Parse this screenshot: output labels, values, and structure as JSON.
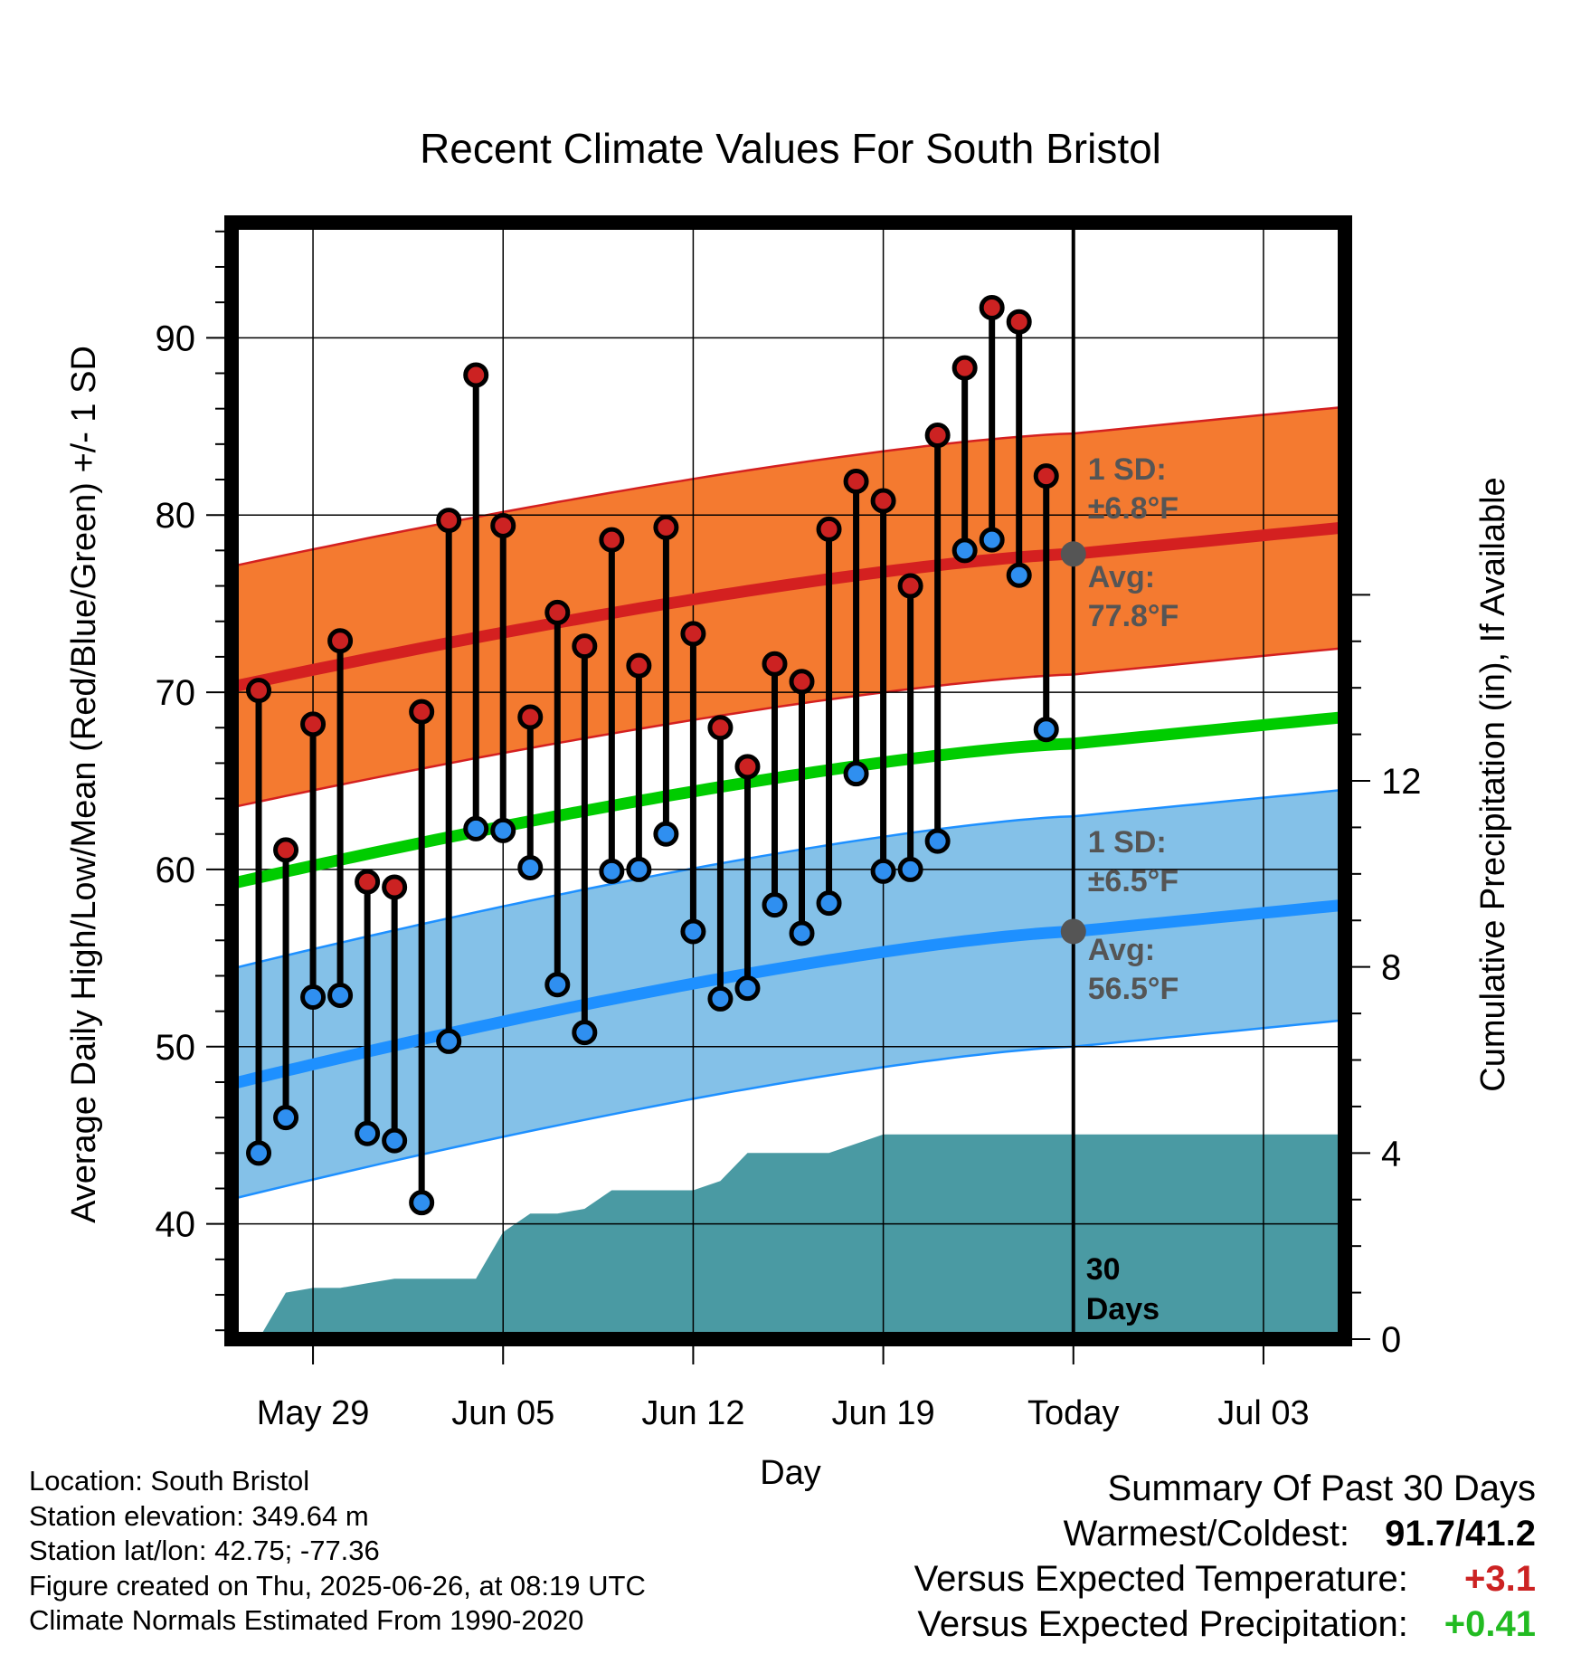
{
  "chart_data": {
    "type": "line",
    "title": "Recent Climate Values For South Bristol",
    "xlabel": "Day",
    "ylabel": "Average Daily High/Low/Mean (Red/Blue/Green) +/- 1 SD",
    "y2label": "Cumulative Precipitation (in), If Available",
    "x_ticks": [
      "May 29",
      "Jun 05",
      "Jun 12",
      "Jun 19",
      "Today",
      "Jul 03"
    ],
    "y_ticks": [
      40,
      50,
      60,
      70,
      80,
      90
    ],
    "y2_ticks": [
      0,
      4,
      8,
      12
    ],
    "ylim": [
      33.5,
      96.5
    ],
    "y2lim": [
      0,
      24
    ],
    "xlim_days_from_today": [
      -31,
      10
    ],
    "grid": true,
    "series": [
      {
        "name": "High",
        "color": "#cc2222",
        "values": [
          70.1,
          61.1,
          68.2,
          72.9,
          59.3,
          59.0,
          68.9,
          79.7,
          87.9,
          79.4,
          68.6,
          74.5,
          72.6,
          78.6,
          71.5,
          79.3,
          73.3,
          68.0,
          65.8,
          71.6,
          70.6,
          79.2,
          81.9,
          80.8,
          76.0,
          84.5,
          88.3,
          91.7,
          90.9,
          82.2
        ]
      },
      {
        "name": "Low",
        "color": "#2f8ff0",
        "values": [
          44.0,
          46.0,
          52.8,
          52.9,
          45.1,
          44.7,
          41.2,
          50.3,
          62.3,
          62.2,
          60.1,
          53.5,
          50.8,
          59.9,
          60.0,
          62.0,
          56.5,
          52.7,
          53.3,
          58.0,
          56.4,
          58.1,
          65.4,
          59.9,
          60.0,
          61.6,
          78.0,
          78.6,
          76.6,
          67.9
        ]
      }
    ],
    "normals": {
      "high_avg": {
        "color": "#d42020",
        "start": 70.3,
        "today": 77.8,
        "end": 79.3
      },
      "low_avg": {
        "color": "#1e90ff",
        "start": 47.9,
        "today": 56.5,
        "end": 58.0
      },
      "mean_avg": {
        "color": "#00cc00",
        "start": 59.2,
        "today": 67.1,
        "end": 68.6
      },
      "high_sd": 6.8,
      "low_sd": 6.5,
      "high_band_color": "#f47a30",
      "low_band_color": "#84c1e8"
    },
    "precip_cumulative_in": [
      0.0,
      1.0,
      1.1,
      1.1,
      1.2,
      1.3,
      1.3,
      1.3,
      1.3,
      2.3,
      2.7,
      2.7,
      2.8,
      3.2,
      3.2,
      3.2,
      3.2,
      3.4,
      4.0,
      4.0,
      4.0,
      4.0,
      4.2,
      4.4,
      4.4,
      4.4,
      4.4,
      4.4,
      4.4,
      4.4,
      4.4
    ],
    "precip_color": "#4a9aa3",
    "annotations": {
      "high_sd_label": "1 SD:",
      "high_sd_value": "±6.8°F",
      "high_avg_label": "Avg:",
      "high_avg_value": "77.8°F",
      "low_sd_label": "1 SD:",
      "low_sd_value": "±6.5°F",
      "low_avg_label": "Avg:",
      "low_avg_value": "56.5°F",
      "days_line1": "30",
      "days_line2": "Days",
      "annotation_color": "#555555"
    }
  },
  "footer": {
    "location": "Location: South Bristol",
    "elevation": "Station elevation: 349.64 m",
    "latlon": "Station lat/lon: 42.75; -77.36",
    "created": "Figure created on Thu, 2025-06-26, at 08:19 UTC",
    "normals": "Climate Normals Estimated From 1990-2020"
  },
  "summary": {
    "title": "Summary Of Past 30 Days",
    "warmest_label": "Warmest/Coldest:",
    "warmest_value": "91.7/41.2",
    "temp_label": "Versus Expected Temperature:",
    "temp_value": "+3.1",
    "temp_color": "#cc2222",
    "precip_label": "Versus Expected Precipitation:",
    "precip_value": "+0.41",
    "precip_color": "#22bb22"
  }
}
